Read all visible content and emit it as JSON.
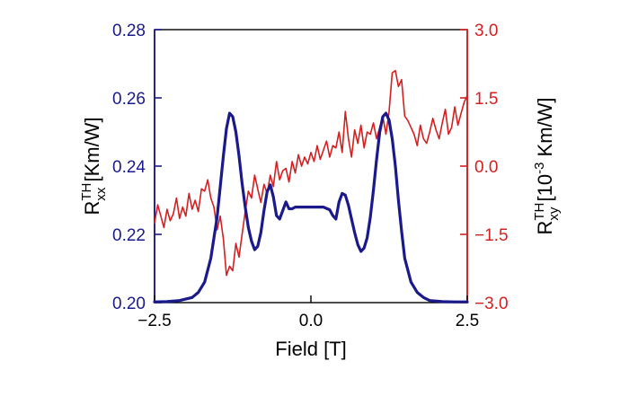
{
  "chart_data": {
    "type": "line",
    "xlabel": "Field [T]",
    "ylabel_left": {
      "base": "R",
      "sup": "TH",
      "sub": "xx",
      "unit": " [Km/W]"
    },
    "ylabel_right": {
      "base": "R",
      "sup": "TH",
      "sub": "xy",
      "unit_pre": " [10",
      "unit_exp": "-3",
      "unit_post": " Km/W]"
    },
    "xlim": [
      -2.5,
      2.5
    ],
    "ylim_left": [
      0.2,
      0.28
    ],
    "ylim_right": [
      -3.0,
      3.0
    ],
    "xticks": [
      "−2.5",
      "0.0",
      "2.5"
    ],
    "xtick_values": [
      -2.5,
      0.0,
      2.5
    ],
    "yticks_left": [
      "0.20",
      "0.22",
      "0.24",
      "0.26",
      "0.28"
    ],
    "ytick_values_left": [
      0.2,
      0.22,
      0.24,
      0.26,
      0.28
    ],
    "yticks_right": [
      "−3.0",
      "−1.5",
      "0.0",
      "1.5",
      "3.0"
    ],
    "ytick_values_right": [
      -3.0,
      -1.5,
      0.0,
      1.5,
      3.0
    ],
    "colors": {
      "left": "#1a1a8c",
      "right": "#d42020"
    },
    "series": [
      {
        "axis": "left",
        "color": "#1a1a8c",
        "x": [
          -2.5,
          -2.3,
          -2.1,
          -1.9,
          -1.8,
          -1.7,
          -1.6,
          -1.5,
          -1.45,
          -1.4,
          -1.35,
          -1.3,
          -1.25,
          -1.2,
          -1.15,
          -1.1,
          -1.05,
          -1.0,
          -0.95,
          -0.9,
          -0.85,
          -0.8,
          -0.75,
          -0.7,
          -0.65,
          -0.6,
          -0.55,
          -0.5,
          -0.45,
          -0.4,
          -0.35,
          -0.3,
          -0.25,
          0.0,
          0.2,
          0.3,
          0.35,
          0.4,
          0.45,
          0.5,
          0.55,
          0.6,
          0.65,
          0.7,
          0.75,
          0.8,
          0.85,
          0.9,
          0.95,
          1.0,
          1.05,
          1.1,
          1.15,
          1.2,
          1.25,
          1.3,
          1.35,
          1.4,
          1.45,
          1.5,
          1.6,
          1.7,
          1.8,
          1.9,
          2.1,
          2.3,
          2.5
        ],
        "y": [
          0.2002,
          0.2003,
          0.2006,
          0.2015,
          0.203,
          0.206,
          0.213,
          0.225,
          0.234,
          0.243,
          0.251,
          0.2555,
          0.2545,
          0.25,
          0.243,
          0.235,
          0.228,
          0.222,
          0.218,
          0.2155,
          0.2165,
          0.2205,
          0.227,
          0.2325,
          0.2345,
          0.231,
          0.2255,
          0.2245,
          0.227,
          0.2295,
          0.2275,
          0.2275,
          0.228,
          0.228,
          0.228,
          0.2272,
          0.2255,
          0.2245,
          0.2295,
          0.232,
          0.2315,
          0.2285,
          0.2245,
          0.2205,
          0.217,
          0.215,
          0.216,
          0.219,
          0.225,
          0.233,
          0.242,
          0.25,
          0.2545,
          0.2555,
          0.2535,
          0.248,
          0.24,
          0.23,
          0.221,
          0.213,
          0.206,
          0.203,
          0.2015,
          0.2006,
          0.2003,
          0.2002,
          0.2002
        ]
      },
      {
        "axis": "right",
        "color": "#d42020",
        "x": [
          -2.5,
          -2.45,
          -2.4,
          -2.35,
          -2.3,
          -2.25,
          -2.2,
          -2.15,
          -2.1,
          -2.05,
          -2.0,
          -1.95,
          -1.9,
          -1.85,
          -1.8,
          -1.75,
          -1.7,
          -1.65,
          -1.6,
          -1.55,
          -1.5,
          -1.45,
          -1.4,
          -1.35,
          -1.3,
          -1.25,
          -1.2,
          -1.15,
          -1.1,
          -1.05,
          -1.0,
          -0.95,
          -0.9,
          -0.85,
          -0.8,
          -0.75,
          -0.7,
          -0.65,
          -0.6,
          -0.55,
          -0.5,
          -0.45,
          -0.4,
          -0.35,
          -0.3,
          -0.25,
          -0.2,
          -0.15,
          -0.1,
          -0.05,
          0.0,
          0.05,
          0.1,
          0.15,
          0.2,
          0.25,
          0.3,
          0.35,
          0.4,
          0.45,
          0.5,
          0.55,
          0.6,
          0.65,
          0.7,
          0.75,
          0.8,
          0.85,
          0.9,
          0.95,
          1.0,
          1.05,
          1.1,
          1.15,
          1.2,
          1.25,
          1.3,
          1.35,
          1.4,
          1.45,
          1.5,
          1.55,
          1.6,
          1.65,
          1.7,
          1.75,
          1.8,
          1.85,
          1.9,
          1.95,
          2.0,
          2.05,
          2.1,
          2.15,
          2.2,
          2.25,
          2.3,
          2.35,
          2.4,
          2.45,
          2.5
        ],
        "y": [
          -1.25,
          -0.85,
          -1.1,
          -1.35,
          -0.95,
          -1.2,
          -1.05,
          -0.7,
          -1.15,
          -0.9,
          -1.1,
          -0.6,
          -0.95,
          -0.75,
          -1.0,
          -0.5,
          -0.55,
          -0.3,
          -0.7,
          -0.9,
          -1.4,
          -1.1,
          -1.6,
          -2.4,
          -2.2,
          -2.3,
          -1.7,
          -2.0,
          -1.5,
          -1.0,
          -0.55,
          -0.7,
          -0.2,
          -0.5,
          -0.8,
          -0.4,
          -0.6,
          -0.2,
          -0.45,
          0.1,
          -0.3,
          -0.1,
          -0.05,
          -0.35,
          0.1,
          -0.15,
          0.25,
          0.0,
          0.2,
          0.05,
          0.3,
          0.1,
          0.45,
          0.15,
          0.35,
          0.55,
          0.2,
          0.45,
          0.4,
          0.75,
          0.3,
          1.2,
          0.6,
          0.2,
          0.8,
          0.5,
          0.9,
          0.4,
          0.75,
          0.7,
          0.95,
          0.6,
          0.85,
          1.1,
          0.7,
          1.2,
          2.05,
          2.1,
          1.75,
          1.9,
          1.1,
          1.0,
          0.85,
          0.7,
          0.45,
          0.9,
          0.6,
          0.5,
          0.75,
          1.05,
          0.8,
          0.6,
          0.95,
          1.25,
          0.7,
          0.85,
          1.3,
          0.9,
          1.15,
          1.4,
          1.55
        ]
      }
    ]
  }
}
